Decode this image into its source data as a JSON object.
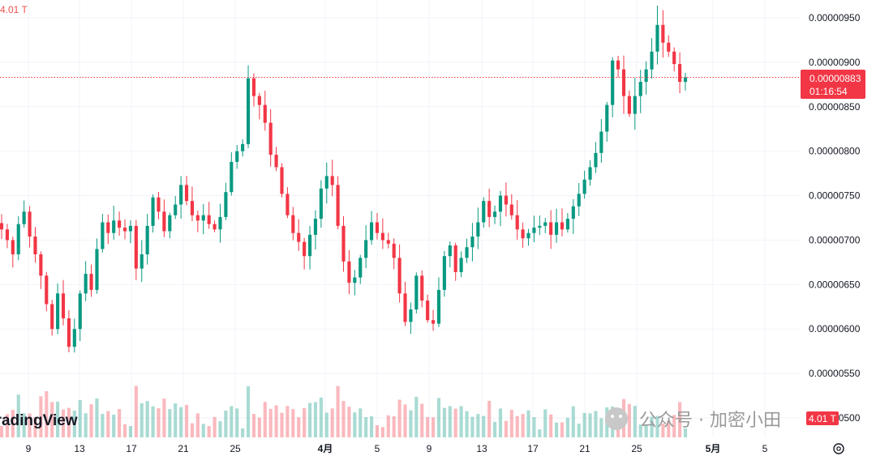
{
  "header": {
    "volume_label": "4.01 T"
  },
  "logo": {
    "text": "TradingView"
  },
  "watermark": {
    "text": "公众号 · 加密小田"
  },
  "price_tag": {
    "price": "0.00000883",
    "countdown": "01:16:54",
    "color": "#f23645"
  },
  "volume_tag": {
    "text": "4.01 T"
  },
  "settings": {
    "icon": "gear-icon"
  },
  "colors": {
    "up": "#089981",
    "down": "#f23645",
    "background": "#ffffff"
  },
  "chart_data": {
    "type": "candlestick",
    "title": "",
    "xlabel": "",
    "ylabel": "",
    "y_ticks": [
      "0.00000950",
      "0.00000900",
      "0.00000850",
      "0.00000800",
      "0.00000750",
      "0.00000700",
      "0.00000650",
      "0.00000600",
      "0.00000550",
      "0.00000500"
    ],
    "x_ticks": [
      "9",
      "13",
      "17",
      "21",
      "25",
      "4月",
      "5",
      "9",
      "13",
      "17",
      "21",
      "25",
      "5月",
      "5"
    ],
    "ylim": [
      4.9e-06,
      9.75e-06
    ],
    "last_price": 8.83e-06,
    "volume_last": "4.01 T",
    "series": [
      {
        "name": "price",
        "close": [
          7.12e-06,
          7e-06,
          6.84e-06,
          7.18e-06,
          7.32e-06,
          7.04e-06,
          6.84e-06,
          6.6e-06,
          6.28e-06,
          6e-06,
          6.4e-06,
          6.12e-06,
          5.8e-06,
          6e-06,
          6.4e-06,
          6.62e-06,
          6.44e-06,
          6.9e-06,
          7.2e-06,
          7.08e-06,
          7.22e-06,
          7.14e-06,
          7.1e-06,
          7.16e-06,
          6.68e-06,
          6.84e-06,
          7.16e-06,
          7.48e-06,
          7.32e-06,
          7.1e-06,
          7.28e-06,
          7.4e-06,
          7.62e-06,
          7.44e-06,
          7.28e-06,
          7.22e-06,
          7.28e-06,
          7.18e-06,
          7.12e-06,
          7.26e-06,
          7.54e-06,
          7.88e-06,
          8e-06,
          8.08e-06,
          8.82e-06,
          8.62e-06,
          8.52e-06,
          8.32e-06,
          7.96e-06,
          7.82e-06,
          7.52e-06,
          7.28e-06,
          7.08e-06,
          6.98e-06,
          6.82e-06,
          7.06e-06,
          7.24e-06,
          7.58e-06,
          7.72e-06,
          7.62e-06,
          7.16e-06,
          6.76e-06,
          6.52e-06,
          6.58e-06,
          6.8e-06,
          7e-06,
          7.2e-06,
          7.08e-06,
          7e-06,
          6.96e-06,
          6.8e-06,
          6.4e-06,
          6.08e-06,
          6.22e-06,
          6.6e-06,
          6.32e-06,
          6.1e-06,
          6.06e-06,
          6.44e-06,
          6.82e-06,
          6.94e-06,
          6.64e-06,
          6.8e-06,
          6.92e-06,
          7.04e-06,
          7.2e-06,
          7.44e-06,
          7.26e-06,
          7.32e-06,
          7.5e-06,
          7.4e-06,
          7.28e-06,
          7.12e-06,
          7.02e-06,
          7.08e-06,
          7.14e-06,
          7.16e-06,
          7.2e-06,
          7.06e-06,
          7.2e-06,
          7.12e-06,
          7.24e-06,
          7.38e-06,
          7.52e-06,
          7.68e-06,
          7.82e-06,
          7.98e-06,
          8.22e-06,
          8.52e-06,
          9.02e-06,
          8.92e-06,
          8.62e-06,
          8.42e-06,
          8.62e-06,
          8.78e-06,
          8.92e-06,
          9.12e-06,
          9.42e-06,
          9.22e-06,
          9.12e-06,
          8.98e-06,
          8.78e-06,
          8.83e-06
        ]
      }
    ]
  }
}
